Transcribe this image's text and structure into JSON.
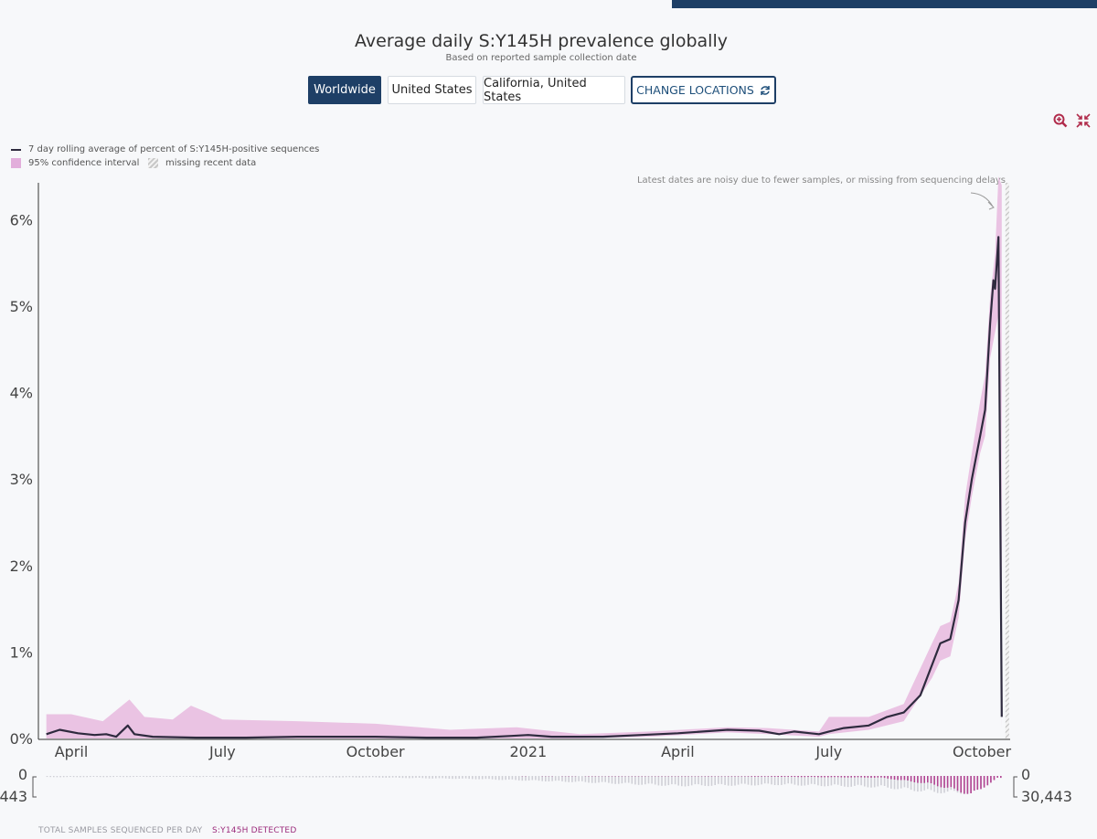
{
  "colors": {
    "line": "#2e2a3e",
    "ci": "#eac3e3",
    "bars": "#b24593",
    "navy": "#1e3f66",
    "missing": "#c8c8c8"
  },
  "header": {
    "title": "Average daily S:Y145H prevalence globally",
    "subtitle": "Based on reported sample collection date"
  },
  "locations": {
    "buttons": [
      "Worldwide",
      "United States",
      "California, United States"
    ],
    "selected": "Worldwide",
    "change_label": "CHANGE LOCATIONS"
  },
  "toolbar": {
    "zoom_icon": "zoom-in-icon",
    "collapse_icon": "collapse-icon"
  },
  "legend": {
    "line_label": "7 day rolling average of percent of S:Y145H-positive sequences",
    "ci_label": "95% confidence interval",
    "missing_label": "missing recent data"
  },
  "annotation": "Latest dates are noisy due to fewer samples, or missing from sequencing delays",
  "footer": {
    "total_label": "TOTAL SAMPLES SEQUENCED PER DAY",
    "detected_label": "S:Y145H DETECTED"
  },
  "chart_data": {
    "type": "line",
    "title": "Average daily S:Y145H prevalence globally",
    "ylabel": "",
    "xlabel": "",
    "ylim": [
      0,
      6.5
    ],
    "y_ticks": [
      "0%",
      "1%",
      "2%",
      "3%",
      "4%",
      "5%",
      "6%"
    ],
    "x_ticks": [
      {
        "label": "April",
        "date": "2020-04-01"
      },
      {
        "label": "July",
        "date": "2020-07-01"
      },
      {
        "label": "October",
        "date": "2020-10-01"
      },
      {
        "label": "2021",
        "date": "2021-01-01"
      },
      {
        "label": "April",
        "date": "2021-04-01"
      },
      {
        "label": "July",
        "date": "2021-07-01"
      },
      {
        "label": "October",
        "date": "2021-10-01"
      }
    ],
    "xlim": [
      "2020-03-17",
      "2021-10-20"
    ],
    "series": [
      {
        "name": "7 day rolling average of percent of S:Y145H-positive sequences",
        "points": [
          [
            "2020-03-17",
            0.05
          ],
          [
            "2020-03-25",
            0.1
          ],
          [
            "2020-04-05",
            0.06
          ],
          [
            "2020-04-15",
            0.04
          ],
          [
            "2020-04-22",
            0.05
          ],
          [
            "2020-04-28",
            0.02
          ],
          [
            "2020-05-05",
            0.15
          ],
          [
            "2020-05-09",
            0.05
          ],
          [
            "2020-05-20",
            0.02
          ],
          [
            "2020-06-15",
            0.01
          ],
          [
            "2020-07-15",
            0.01
          ],
          [
            "2020-08-15",
            0.02
          ],
          [
            "2020-09-15",
            0.02
          ],
          [
            "2020-10-01",
            0.02
          ],
          [
            "2020-11-01",
            0.01
          ],
          [
            "2020-12-01",
            0.01
          ],
          [
            "2020-12-22",
            0.03
          ],
          [
            "2021-01-01",
            0.04
          ],
          [
            "2021-01-15",
            0.02
          ],
          [
            "2021-02-15",
            0.02
          ],
          [
            "2021-03-10",
            0.04
          ],
          [
            "2021-04-01",
            0.06
          ],
          [
            "2021-05-01",
            0.1
          ],
          [
            "2021-05-20",
            0.09
          ],
          [
            "2021-06-01",
            0.05
          ],
          [
            "2021-06-10",
            0.08
          ],
          [
            "2021-06-25",
            0.05
          ],
          [
            "2021-07-01",
            0.08
          ],
          [
            "2021-07-10",
            0.12
          ],
          [
            "2021-07-25",
            0.15
          ],
          [
            "2021-08-05",
            0.25
          ],
          [
            "2021-08-15",
            0.3
          ],
          [
            "2021-08-25",
            0.5
          ],
          [
            "2021-09-01",
            0.85
          ],
          [
            "2021-09-06",
            1.1
          ],
          [
            "2021-09-12",
            1.15
          ],
          [
            "2021-09-17",
            1.6
          ],
          [
            "2021-09-21",
            2.5
          ],
          [
            "2021-09-25",
            3.0
          ],
          [
            "2021-09-30",
            3.5
          ],
          [
            "2021-10-03",
            3.8
          ],
          [
            "2021-10-06",
            4.8
          ],
          [
            "2021-10-08",
            5.3
          ],
          [
            "2021-10-09",
            5.2
          ],
          [
            "2021-10-11",
            5.8
          ],
          [
            "2021-10-13",
            0.25
          ]
        ]
      },
      {
        "name": "95% confidence interval",
        "bounds": [
          [
            "2020-03-17",
            0.0,
            0.28
          ],
          [
            "2020-04-01",
            0.0,
            0.28
          ],
          [
            "2020-04-20",
            0.0,
            0.2
          ],
          [
            "2020-05-06",
            0.0,
            0.45
          ],
          [
            "2020-05-15",
            0.0,
            0.25
          ],
          [
            "2020-06-01",
            0.0,
            0.22
          ],
          [
            "2020-06-12",
            0.0,
            0.38
          ],
          [
            "2020-06-22",
            0.0,
            0.3
          ],
          [
            "2020-07-01",
            0.0,
            0.22
          ],
          [
            "2020-08-15",
            0.0,
            0.2
          ],
          [
            "2020-10-01",
            0.0,
            0.17
          ],
          [
            "2020-11-15",
            0.0,
            0.1
          ],
          [
            "2020-12-25",
            0.0,
            0.13
          ],
          [
            "2021-02-01",
            0.0,
            0.05
          ],
          [
            "2021-03-15",
            0.02,
            0.08
          ],
          [
            "2021-05-01",
            0.07,
            0.13
          ],
          [
            "2021-05-25",
            0.05,
            0.12
          ],
          [
            "2021-06-25",
            0.02,
            0.08
          ],
          [
            "2021-07-01",
            0.05,
            0.25
          ],
          [
            "2021-07-25",
            0.1,
            0.25
          ],
          [
            "2021-08-15",
            0.2,
            0.4
          ],
          [
            "2021-09-01",
            0.7,
            1.1
          ],
          [
            "2021-09-06",
            0.9,
            1.3
          ],
          [
            "2021-09-12",
            0.95,
            1.35
          ],
          [
            "2021-09-17",
            1.4,
            1.8
          ],
          [
            "2021-09-21",
            2.3,
            2.8
          ],
          [
            "2021-09-25",
            2.8,
            3.3
          ],
          [
            "2021-09-30",
            3.3,
            3.9
          ],
          [
            "2021-10-03",
            3.5,
            4.2
          ],
          [
            "2021-10-06",
            4.4,
            5.1
          ],
          [
            "2021-10-09",
            4.7,
            5.6
          ],
          [
            "2021-10-11",
            4.9,
            6.5
          ],
          [
            "2021-10-13",
            0.1,
            6.4
          ]
        ]
      }
    ],
    "missing_data_range": [
      "2021-10-13",
      "2021-10-15"
    ],
    "samples": {
      "total_label": "TOTAL SAMPLES SEQUENCED PER DAY",
      "detected_label": "S:Y145H DETECTED",
      "left_axis": [
        "0",
        "443"
      ],
      "right_axis": [
        "0",
        "30,443"
      ],
      "total_per_day_profile": [
        [
          "2020-03-17",
          2000
        ],
        [
          "2020-06-01",
          1500
        ],
        [
          "2020-10-01",
          2500
        ],
        [
          "2020-12-01",
          5000
        ],
        [
          "2021-02-01",
          10000
        ],
        [
          "2021-04-01",
          16000
        ],
        [
          "2021-06-01",
          14000
        ],
        [
          "2021-08-01",
          18000
        ],
        [
          "2021-09-01",
          26000
        ],
        [
          "2021-09-25",
          28000
        ],
        [
          "2021-10-10",
          3000
        ]
      ],
      "detected_per_day_profile": [
        [
          "2020-03-17",
          2
        ],
        [
          "2020-06-01",
          0
        ],
        [
          "2021-05-01",
          10
        ],
        [
          "2021-08-01",
          40
        ],
        [
          "2021-09-01",
          200
        ],
        [
          "2021-09-25",
          443
        ],
        [
          "2021-10-10",
          50
        ]
      ]
    }
  }
}
